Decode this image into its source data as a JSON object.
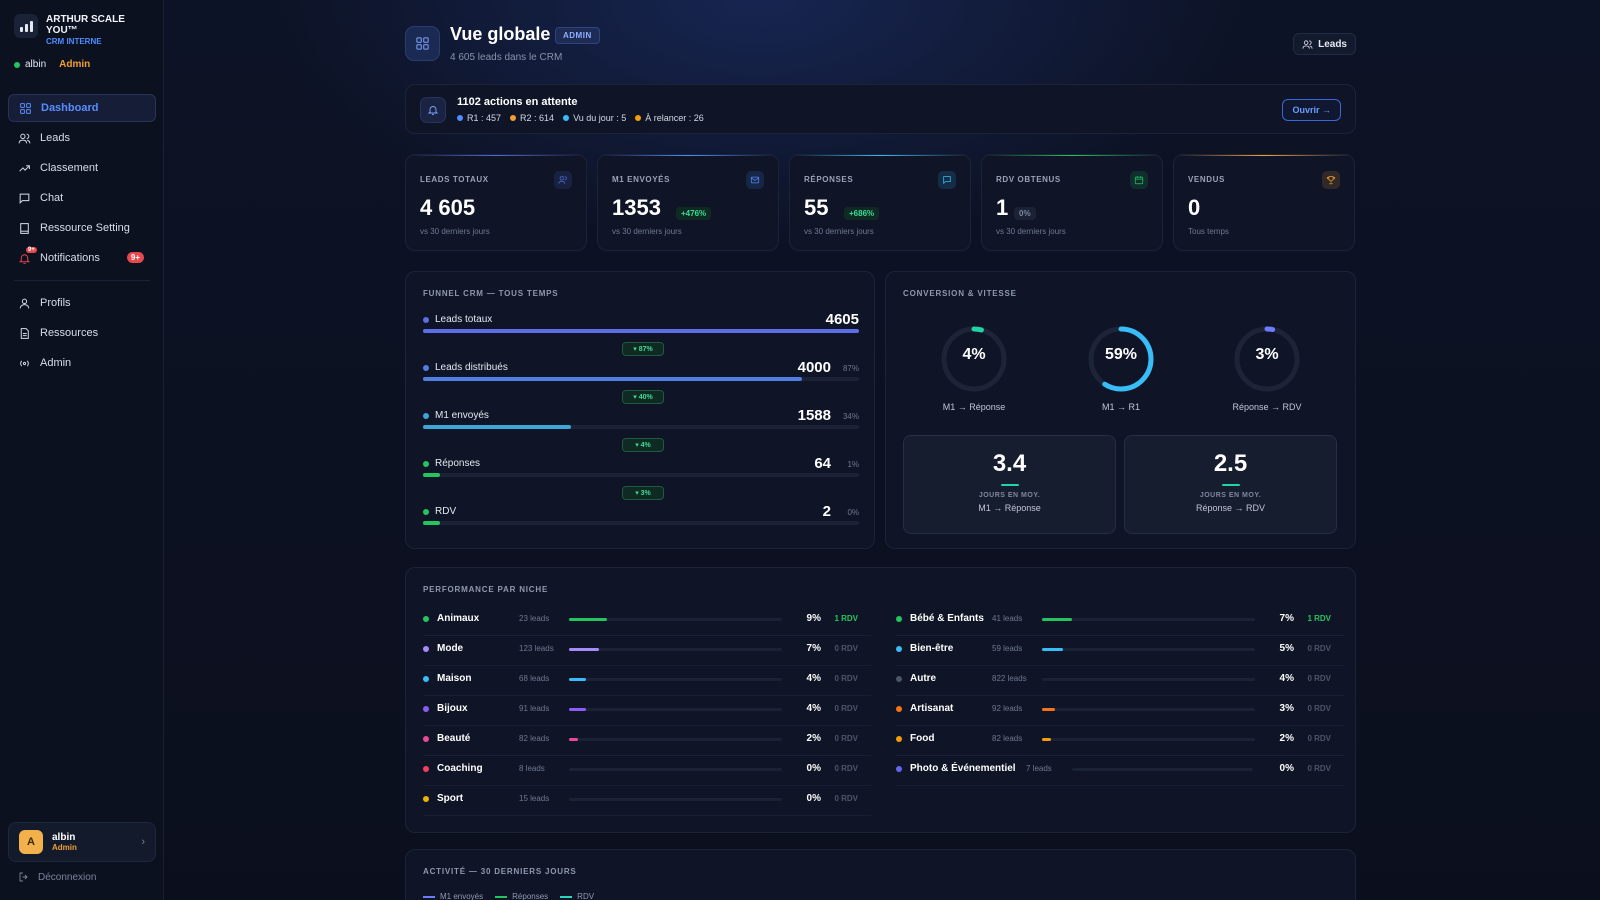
{
  "brand": {
    "name": "ARTHUR SCALE YOU™",
    "sub": "CRM INTERNE"
  },
  "user": {
    "name": "albin",
    "role": "Admin",
    "initial": "A"
  },
  "nav": {
    "dashboard": "Dashboard",
    "leads": "Leads",
    "classement": "Classement",
    "chat": "Chat",
    "ressource_setting": "Ressource Setting",
    "notifications": "Notifications",
    "notifications_badge": "9+",
    "profils": "Profils",
    "ressources": "Ressources",
    "admin": "Admin"
  },
  "logout": "Déconnexion",
  "header": {
    "title": "Vue globale",
    "tag": "ADMIN",
    "subtitle": "4 605 leads dans le CRM",
    "leads_button": "Leads"
  },
  "actions": {
    "title": "1102 actions en attente",
    "stats": [
      {
        "label": "R1 : 457",
        "color": "#4f8cff"
      },
      {
        "label": "R2 : 614",
        "color": "#f0a030"
      },
      {
        "label": "Vu du jour : 5",
        "color": "#38bdf8"
      },
      {
        "label": "À relancer : 26",
        "color": "#f59e0b"
      }
    ],
    "open_button": "Ouvrir →"
  },
  "kpis": [
    {
      "label": "LEADS TOTAUX",
      "value": "4 605",
      "delta": "",
      "foot": "vs 30 derniers jours",
      "icon": "users-icon",
      "accent": "#4f6bd8"
    },
    {
      "label": "M1 ENVOYÉS",
      "value": "1353",
      "delta": "+476%",
      "foot": "vs 30 derniers jours",
      "icon": "mail-icon",
      "accent": "#4f8cff"
    },
    {
      "label": "RÉPONSES",
      "value": "55",
      "delta": "+686%",
      "foot": "vs 30 derniers jours",
      "icon": "message-icon",
      "accent": "#38bdf8"
    },
    {
      "label": "RDV OBTENUS",
      "value": "1",
      "delta": "0%",
      "foot": "vs 30 derniers jours",
      "icon": "calendar-icon",
      "accent": "#22c55e"
    },
    {
      "label": "VENDUS",
      "value": "0",
      "delta": "",
      "foot": "Tous temps",
      "icon": "trophy-icon",
      "accent": "#f0a030"
    }
  ],
  "funnel": {
    "title": "FUNNEL CRM — TOUS TEMPS",
    "steps": [
      {
        "label": "Leads totaux",
        "value": "4605",
        "pct": "",
        "fill": 1.0,
        "color": "#5b6ee8"
      },
      {
        "label": "Leads distribués",
        "value": "4000",
        "pct": "87%",
        "fill": 0.87,
        "color": "#4f7fe0"
      },
      {
        "label": "M1 envoyés",
        "value": "1588",
        "pct": "34%",
        "fill": 0.34,
        "color": "#3ba6d8"
      },
      {
        "label": "Réponses",
        "value": "64",
        "pct": "1%",
        "fill": 0.04,
        "color": "#22c55e"
      },
      {
        "label": "RDV",
        "value": "2",
        "pct": "0%",
        "fill": 0.04,
        "color": "#22c55e"
      }
    ],
    "drops": [
      "▾ 87%",
      "▾ 40%",
      "▾ 4%",
      "▾ 3%"
    ]
  },
  "conversion": {
    "title": "CONVERSION & VITESSE",
    "rings": [
      {
        "value": "4%",
        "label": "M1 → Réponse",
        "fraction": 0.04,
        "color": "#22d3a6"
      },
      {
        "value": "59%",
        "label": "M1 → R1",
        "fraction": 0.59,
        "color": "#38bdf8"
      },
      {
        "value": "3%",
        "label": "Réponse → RDV",
        "fraction": 0.03,
        "color": "#6b7cff"
      }
    ],
    "speeds": [
      {
        "value": "3.4",
        "unit": "JOURS EN MOY.",
        "label": "M1 → Réponse",
        "color": "#22d3a6"
      },
      {
        "value": "2.5",
        "unit": "JOURS EN MOY.",
        "label": "Réponse → RDV",
        "color": "#22d3a6"
      }
    ]
  },
  "performance": {
    "title": "PERFORMANCE PAR NICHE",
    "left": [
      {
        "name": "Animaux",
        "leads": "23 leads",
        "pct": "9%",
        "rdv": "1 RDV",
        "fill": 0.09,
        "color": "#22c55e",
        "hit": true
      },
      {
        "name": "Mode",
        "leads": "123 leads",
        "pct": "7%",
        "rdv": "0 RDV",
        "fill": 0.07,
        "color": "#a78bfa",
        "hit": false
      },
      {
        "name": "Maison",
        "leads": "68 leads",
        "pct": "4%",
        "rdv": "0 RDV",
        "fill": 0.04,
        "color": "#38bdf8",
        "hit": false
      },
      {
        "name": "Bijoux",
        "leads": "91 leads",
        "pct": "4%",
        "rdv": "0 RDV",
        "fill": 0.04,
        "color": "#8b5cf6",
        "hit": false
      },
      {
        "name": "Beauté",
        "leads": "82 leads",
        "pct": "2%",
        "rdv": "0 RDV",
        "fill": 0.02,
        "color": "#ec4899",
        "hit": false
      },
      {
        "name": "Coaching",
        "leads": "8 leads",
        "pct": "0%",
        "rdv": "0 RDV",
        "fill": 0.0,
        "color": "#f43f5e",
        "hit": false
      },
      {
        "name": "Sport",
        "leads": "15 leads",
        "pct": "0%",
        "rdv": "0 RDV",
        "fill": 0.0,
        "color": "#eab308",
        "hit": false
      }
    ],
    "right": [
      {
        "name": "Bébé & Enfants",
        "leads": "41 leads",
        "pct": "7%",
        "rdv": "1 RDV",
        "fill": 0.07,
        "color": "#22c55e",
        "hit": true
      },
      {
        "name": "Bien-être",
        "leads": "59 leads",
        "pct": "5%",
        "rdv": "0 RDV",
        "fill": 0.05,
        "color": "#38bdf8",
        "hit": false
      },
      {
        "name": "Autre",
        "leads": "822 leads",
        "pct": "4%",
        "rdv": "0 RDV",
        "fill": 0.0,
        "color": "#4b5563",
        "hit": false
      },
      {
        "name": "Artisanat",
        "leads": "92 leads",
        "pct": "3%",
        "rdv": "0 RDV",
        "fill": 0.03,
        "color": "#f97316",
        "hit": false
      },
      {
        "name": "Food",
        "leads": "82 leads",
        "pct": "2%",
        "rdv": "0 RDV",
        "fill": 0.02,
        "color": "#f59e0b",
        "hit": false
      },
      {
        "name": "Photo & Événementiel",
        "leads": "7 leads",
        "pct": "0%",
        "rdv": "0 RDV",
        "fill": 0.0,
        "color": "#6366f1",
        "hit": false
      }
    ]
  },
  "activity": {
    "title": "ACTIVITÉ — 30 DERNIERS JOURS",
    "legend": [
      {
        "label": "M1 envoyés",
        "color": "#6b7cff"
      },
      {
        "label": "Réponses",
        "color": "#22c55e"
      },
      {
        "label": "RDV",
        "color": "#2dd4bf"
      }
    ]
  }
}
